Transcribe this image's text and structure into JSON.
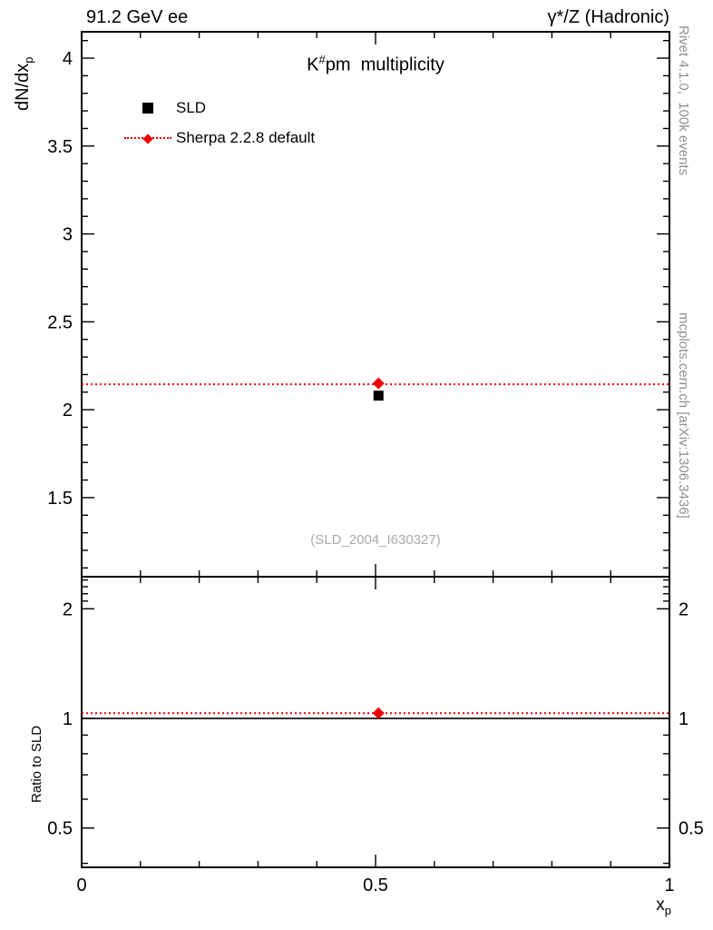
{
  "header": {
    "left": "91.2 GeV ee",
    "right": "γ*/Z (Hadronic)"
  },
  "title": {
    "base": "K",
    "sup": "#",
    "rest": "pm  multiplicity"
  },
  "legend": {
    "entries": [
      {
        "label": "SLD",
        "marker": "square",
        "color": "#000000"
      },
      {
        "label": "Sherpa 2.2.8 default",
        "marker": "diamond-dotted-line",
        "color": "#ee0000"
      }
    ]
  },
  "watermark": "(SLD_2004_I630327)",
  "side_notes": {
    "top": "Rivet 4.1.0,  100k events",
    "bottom": "mcplots.cern.ch [arXiv:1306.3436]"
  },
  "axes": {
    "ylabel_main": {
      "base": "dN/dx",
      "sub": "p"
    },
    "ylabel_ratio": "Ratio to SLD",
    "xlabel": {
      "base": "x",
      "sub": "p"
    }
  },
  "chart_data": {
    "type": "scatter",
    "title": "K#pm multiplicity",
    "xlabel": "x_p",
    "xlim": [
      0,
      1
    ],
    "xticks_major": [
      0,
      0.5,
      1
    ],
    "xtick_labels": [
      "0",
      "0.5",
      "1"
    ],
    "xticks_minor_step": 0.1,
    "panels": [
      {
        "name": "main",
        "ylabel": "dN/dx_p",
        "yscale": "linear",
        "ylim": [
          1.05,
          4.15
        ],
        "yticks_major": [
          1.5,
          2,
          2.5,
          3,
          3.5,
          4
        ],
        "ytick_labels": [
          "1.5",
          "2",
          "2.5",
          "3",
          "3.5",
          "4"
        ],
        "yticks_minor_step": 0.1,
        "labels_right": false,
        "series": [
          {
            "name": "SLD",
            "marker": "square",
            "color": "#000000",
            "points": [
              {
                "x": 0.505,
                "y": 2.08
              }
            ]
          },
          {
            "name": "Sherpa 2.2.8 default",
            "marker": "diamond",
            "color": "#ee0000",
            "line": "dotted",
            "line_y": 2.145,
            "points": [
              {
                "x": 0.505,
                "y": 2.15
              }
            ]
          }
        ]
      },
      {
        "name": "ratio",
        "ylabel": "Ratio to SLD",
        "yscale": "log",
        "ylim": [
          0.39,
          2.45
        ],
        "yticks_major": [
          0.5,
          1,
          2
        ],
        "ytick_labels": [
          "0.5",
          "1",
          "2"
        ],
        "yticks_minor": [
          0.4,
          0.6,
          0.7,
          0.8,
          0.9,
          2.1,
          2.2,
          2.3,
          2.4
        ],
        "labels_right": true,
        "series": [
          {
            "name": "SLD",
            "marker": "none",
            "color": "#000000",
            "line": "solid",
            "line_y": 1.0
          },
          {
            "name": "Sherpa 2.2.8 default",
            "marker": "diamond",
            "color": "#ee0000",
            "line": "dotted",
            "line_y": 1.034,
            "points": [
              {
                "x": 0.505,
                "y": 1.034
              }
            ]
          }
        ]
      }
    ]
  }
}
